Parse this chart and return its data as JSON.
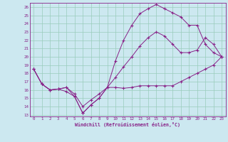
{
  "xlabel": "Windchill (Refroidissement éolien,°C)",
  "background_color": "#cce8f0",
  "grid_color": "#99ccbb",
  "line_color": "#882288",
  "xlim": [
    -0.5,
    23.5
  ],
  "ylim": [
    12.8,
    26.5
  ],
  "xticks": [
    0,
    1,
    2,
    3,
    4,
    5,
    6,
    7,
    8,
    9,
    10,
    11,
    12,
    13,
    14,
    15,
    16,
    17,
    18,
    19,
    20,
    21,
    22,
    23
  ],
  "yticks": [
    13,
    14,
    15,
    16,
    17,
    18,
    19,
    20,
    21,
    22,
    23,
    24,
    25,
    26
  ],
  "series": [
    {
      "x": [
        0,
        1,
        2,
        3,
        4,
        5,
        6,
        7,
        8,
        9,
        10,
        11,
        12,
        13,
        14,
        15,
        16,
        17,
        18,
        19,
        20,
        21,
        22,
        23
      ],
      "y": [
        18.5,
        16.7,
        16.0,
        16.1,
        15.8,
        15.2,
        13.2,
        14.2,
        15.0,
        16.3,
        16.3,
        16.2,
        16.3,
        16.5,
        16.5,
        16.5,
        16.5,
        16.5,
        17.0,
        17.5,
        18.0,
        18.5,
        19.0,
        20.0
      ]
    },
    {
      "x": [
        0,
        1,
        2,
        3,
        4,
        5,
        6,
        7,
        8,
        9,
        10,
        11,
        12,
        13,
        14,
        15,
        16,
        17,
        18,
        19,
        20,
        21,
        22,
        23
      ],
      "y": [
        18.5,
        16.7,
        16.0,
        16.1,
        16.3,
        15.5,
        14.0,
        14.8,
        15.5,
        16.3,
        17.5,
        18.8,
        20.0,
        21.3,
        22.3,
        23.0,
        22.5,
        21.5,
        20.5,
        20.5,
        20.8,
        22.3,
        21.5,
        20.0
      ]
    },
    {
      "x": [
        0,
        1,
        2,
        3,
        4,
        5,
        6,
        7,
        8,
        9,
        10,
        11,
        12,
        13,
        14,
        15,
        16,
        17,
        18,
        19,
        20,
        21,
        22,
        23
      ],
      "y": [
        18.5,
        16.7,
        16.0,
        16.1,
        16.3,
        15.2,
        13.2,
        14.2,
        15.0,
        16.3,
        19.5,
        22.0,
        23.8,
        25.2,
        25.8,
        26.3,
        25.8,
        25.3,
        24.8,
        23.8,
        23.8,
        21.5,
        20.5,
        20.0
      ]
    }
  ]
}
